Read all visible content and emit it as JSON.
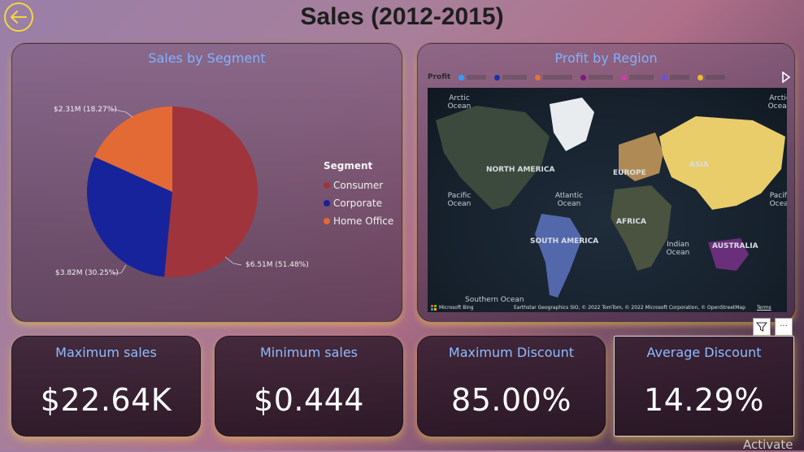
{
  "header": {
    "title": "Sales (2012-2015)",
    "back_icon": "arrow-left-circle-icon",
    "back_color": "#f2d640"
  },
  "pie_panel": {
    "title": "Sales by Segment",
    "chart_data": {
      "type": "pie",
      "title": "Sales by Segment",
      "slices": [
        {
          "label": "Consumer",
          "value": 6.51,
          "percent": 51.48,
          "color": "#a0343c",
          "display": "$6.51M (51.48%)"
        },
        {
          "label": "Corporate",
          "value": 3.82,
          "percent": 30.25,
          "color": "#17239a",
          "display": "$3.82M (30.25%)"
        },
        {
          "label": "Home Office",
          "value": 2.31,
          "percent": 18.27,
          "color": "#e36a35",
          "display": "$2.31M (18.27%)"
        }
      ],
      "legend_title": "Segment",
      "legend_position": "right"
    }
  },
  "map_panel": {
    "title": "Profit by Region",
    "legend_prefix": "Profit",
    "legend_colors": [
      "#2fa0ff",
      "#1c2ea6",
      "#e37535",
      "#7a1a7a",
      "#d03ca8",
      "#6b4fd6",
      "#e6bb2e"
    ],
    "labels": {
      "north_america": "NORTH AMERICA",
      "south_america": "SOUTH AMERICA",
      "europe": "EUROPE",
      "asia": "ASIA",
      "africa": "AFRICA",
      "australia": "AUSTRALIA"
    },
    "oceans": {
      "arctic_left": "Arctic Ocean",
      "arctic_right": "Arctic Ocean",
      "pacific_left": "Pacific Ocean",
      "pacific_right": "Pacific Ocean",
      "atlantic": "Atlantic Ocean",
      "indian": "Indian Ocean",
      "southern": "Southern Ocean"
    },
    "credit": "Earthstar Geographics SIO, © 2022 TomTom, © 2022 Microsoft Corporation, © OpenStreetMap",
    "terms": "Terms",
    "bing": "Microsoft Bing",
    "next_icon": "play-right-icon"
  },
  "kpis": [
    {
      "label": "Maximum sales",
      "value": "$22.64K"
    },
    {
      "label": "Minimum sales",
      "value": "$0.444"
    },
    {
      "label": "Maximum Discount",
      "value": "85.00%"
    },
    {
      "label": "Average Discount",
      "value": "14.29%"
    }
  ],
  "visual_header": {
    "filter_icon": "filter-icon",
    "more_icon": "more-options-icon",
    "more_glyph": "···"
  },
  "watermark": "Activate"
}
